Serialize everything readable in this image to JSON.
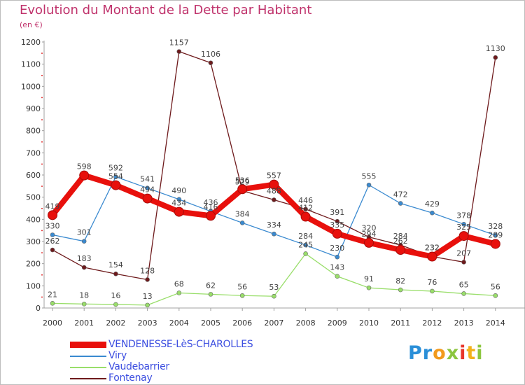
{
  "header": {
    "title": "Evolution du Montant de la Dette par Habitant",
    "subtitle": "(en €)"
  },
  "brand": {
    "logo_chars": [
      {
        "ch": "P",
        "color": "#2a8fd8"
      },
      {
        "ch": "r",
        "color": "#2a8fd8"
      },
      {
        "ch": "o",
        "color": "#f29a1c"
      },
      {
        "ch": "x",
        "color": "#8cc63f"
      },
      {
        "ch": "i",
        "color": "#e8362b"
      },
      {
        "ch": "t",
        "color": "#f2b21c"
      },
      {
        "ch": "i",
        "color": "#8cc63f"
      }
    ]
  },
  "chart_data": {
    "type": "line",
    "title": "Evolution du Montant de la Dette par Habitant",
    "ylabel": "(en €)",
    "xlabel": "",
    "x": [
      "2000",
      "2001",
      "2002",
      "2003",
      "2004",
      "2005",
      "2006",
      "2007",
      "2008",
      "2009",
      "2010",
      "2011",
      "2012",
      "2013",
      "2014"
    ],
    "ylim": [
      0,
      1200
    ],
    "yticks": [
      0,
      100,
      200,
      300,
      400,
      500,
      600,
      700,
      800,
      900,
      1000,
      1100,
      1200
    ],
    "grid": false,
    "legend_position": "bottom-left",
    "series": [
      {
        "name": "VENDENESSE-LèS-CHAROLLES",
        "color": "#e8100c",
        "emphasis": true,
        "values": [
          419,
          598,
          554,
          494,
          434,
          416,
          536,
          557,
          412,
          335,
          294,
          262,
          232,
          325,
          289
        ]
      },
      {
        "name": "Viry",
        "color": "#3a8ad0",
        "emphasis": false,
        "values": [
          330,
          301,
          592,
          541,
          490,
          436,
          384,
          334,
          284,
          230,
          555,
          472,
          429,
          378,
          328
        ]
      },
      {
        "name": "Vaudebarrier",
        "color": "#99de6a",
        "emphasis": false,
        "values": [
          21,
          18,
          16,
          13,
          68,
          62,
          56,
          53,
          245,
          143,
          91,
          82,
          76,
          65,
          56
        ]
      },
      {
        "name": "Fontenay",
        "color": "#6e1a1c",
        "emphasis": false,
        "values": [
          262,
          183,
          154,
          128,
          1157,
          1106,
          529,
          488,
          446,
          391,
          320,
          284,
          232,
          207,
          1130
        ]
      }
    ]
  }
}
